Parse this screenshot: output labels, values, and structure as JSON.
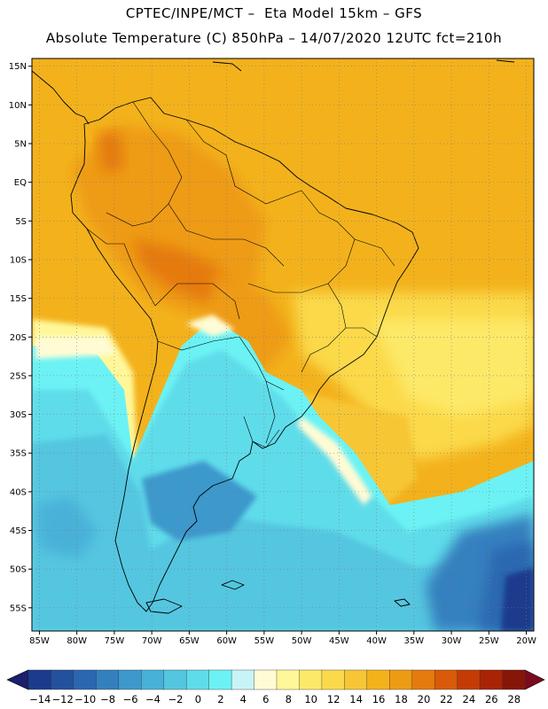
{
  "header": {
    "line1": "CPTEC/INPE/MCT –  Eta Model 15km – GFS",
    "line2": "Absolute Temperature (C) 850hPa – 14/07/2020 12UTC fct=210h"
  },
  "map": {
    "region": "South America",
    "projection": "lat-lon",
    "lon_range": [
      -86,
      -19
    ],
    "lat_range": [
      -58,
      16
    ],
    "lat_labels": [
      "15N",
      "10N",
      "5N",
      "EQ",
      "5S",
      "10S",
      "15S",
      "20S",
      "25S",
      "30S",
      "35S",
      "40S",
      "45S",
      "50S",
      "55S"
    ],
    "lon_labels": [
      "85W",
      "80W",
      "75W",
      "70W",
      "65W",
      "60W",
      "55W",
      "50W",
      "45W",
      "40W",
      "35W",
      "30W",
      "25W",
      "20W"
    ],
    "grid": "dotted"
  },
  "colorbar": {
    "labels": [
      "-14",
      "-12",
      "-10",
      "-8",
      "-6",
      "-4",
      "-2",
      "0",
      "2",
      "4",
      "6",
      "8",
      "10",
      "12",
      "14",
      "16",
      "18",
      "20",
      "22",
      "24",
      "26",
      "28"
    ],
    "colors": [
      "#1b3b8c",
      "#23519e",
      "#2b67b1",
      "#3480bf",
      "#3d98cc",
      "#48b1d8",
      "#54c6e0",
      "#5fdcea",
      "#6cf2f4",
      "#c8f4f8",
      "#fffbd5",
      "#fff799",
      "#fde968",
      "#fbd94a",
      "#f6c636",
      "#f3b21c",
      "#ee9b14",
      "#e57a0e",
      "#d95a08",
      "#c53b06",
      "#a82404",
      "#861608"
    ],
    "arrow_low_color": "#1a1f6e",
    "arrow_high_color": "#7a0a1e",
    "units": "C"
  }
}
